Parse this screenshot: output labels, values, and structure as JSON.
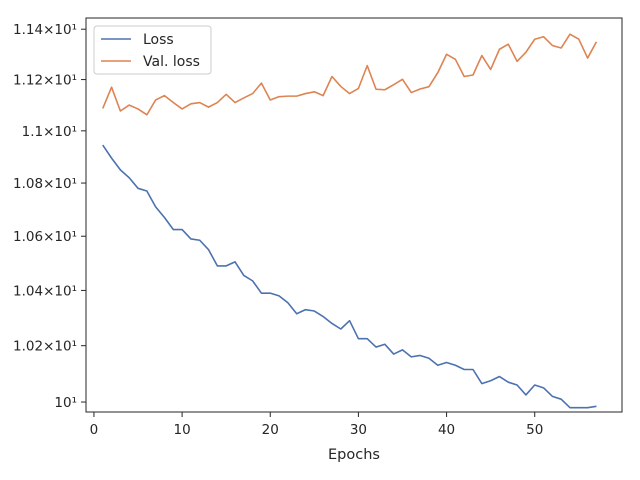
{
  "chart_data": {
    "type": "line",
    "title": "",
    "xlabel": "Epochs",
    "ylabel": "",
    "xlim": [
      -0.9,
      59.9
    ],
    "ylim": [
      9.965,
      11.445
    ],
    "yscale": "log",
    "grid": false,
    "legend_position": "top-left",
    "x_ticks": [
      0,
      10,
      20,
      30,
      40,
      50
    ],
    "y_ticks": [
      {
        "value": 10.0,
        "label": "10¹"
      },
      {
        "value": 10.2,
        "label": "1.02×10¹"
      },
      {
        "value": 10.4,
        "label": "1.04×10¹"
      },
      {
        "value": 10.6,
        "label": "1.06×10¹"
      },
      {
        "value": 10.8,
        "label": "1.08×10¹"
      },
      {
        "value": 11.0,
        "label": "1.1×10¹"
      },
      {
        "value": 11.2,
        "label": "1.12×10¹"
      },
      {
        "value": 11.4,
        "label": "1.14×10¹"
      }
    ],
    "series": [
      {
        "name": "Loss",
        "color": "#4c72b0",
        "x": [
          1,
          2,
          3,
          4,
          5,
          6,
          7,
          8,
          9,
          10,
          11,
          12,
          13,
          14,
          15,
          16,
          17,
          18,
          19,
          20,
          21,
          22,
          23,
          24,
          25,
          26,
          27,
          28,
          29,
          30,
          31,
          32,
          33,
          34,
          35,
          36,
          37,
          38,
          39,
          40,
          41,
          42,
          43,
          44,
          45,
          46,
          47,
          48,
          49,
          50,
          51,
          52,
          53,
          54,
          55,
          56,
          57
        ],
        "y": [
          10.945,
          10.895,
          10.85,
          10.82,
          10.78,
          10.77,
          10.71,
          10.67,
          10.625,
          10.625,
          10.59,
          10.585,
          10.55,
          10.49,
          10.49,
          10.505,
          10.455,
          10.435,
          10.39,
          10.39,
          10.38,
          10.355,
          10.315,
          10.33,
          10.325,
          10.305,
          10.28,
          10.26,
          10.29,
          10.225,
          10.225,
          10.195,
          10.205,
          10.17,
          10.185,
          10.16,
          10.165,
          10.155,
          10.13,
          10.14,
          10.13,
          10.115,
          10.115,
          10.065,
          10.075,
          10.09,
          10.07,
          10.06,
          10.025,
          10.06,
          10.05,
          10.02,
          10.01,
          9.98,
          9.98,
          9.98,
          9.985
        ]
      },
      {
        "name": "Val. loss",
        "color": "#dd8452",
        "x": [
          1,
          2,
          3,
          4,
          5,
          6,
          7,
          8,
          9,
          10,
          11,
          12,
          13,
          14,
          15,
          16,
          17,
          18,
          19,
          20,
          21,
          22,
          23,
          24,
          25,
          26,
          27,
          28,
          29,
          30,
          31,
          32,
          33,
          34,
          35,
          36,
          37,
          38,
          39,
          40,
          41,
          42,
          43,
          44,
          45,
          46,
          47,
          48,
          49,
          50,
          51,
          52,
          53,
          54,
          55,
          56,
          57
        ],
        "y": [
          11.087,
          11.17,
          11.077,
          11.1,
          11.085,
          11.062,
          11.12,
          11.137,
          11.11,
          11.085,
          11.105,
          11.11,
          11.092,
          11.11,
          11.142,
          11.11,
          11.128,
          11.145,
          11.186,
          11.12,
          11.133,
          11.135,
          11.135,
          11.145,
          11.152,
          11.137,
          11.212,
          11.173,
          11.145,
          11.165,
          11.255,
          11.162,
          11.16,
          11.18,
          11.201,
          11.149,
          11.163,
          11.172,
          11.227,
          11.3,
          11.28,
          11.212,
          11.218,
          11.295,
          11.24,
          11.32,
          11.34,
          11.272,
          11.308,
          11.36,
          11.37,
          11.335,
          11.325,
          11.38,
          11.36,
          11.285,
          11.35
        ]
      }
    ]
  }
}
